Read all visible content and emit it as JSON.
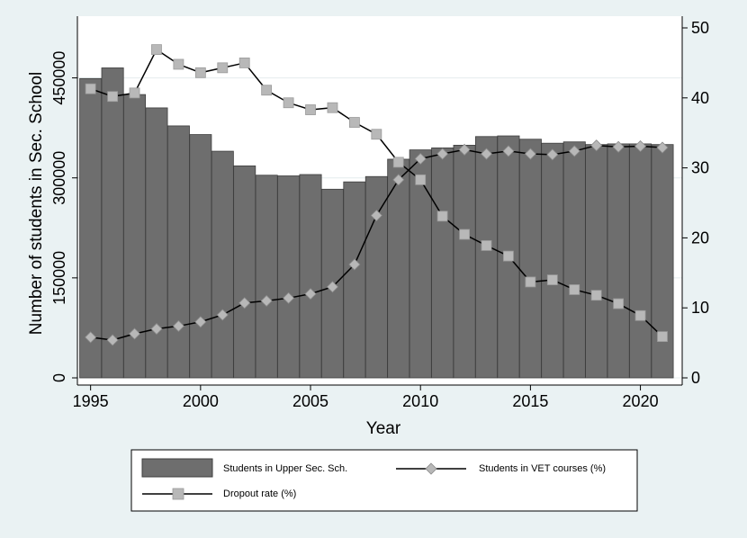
{
  "chart_data": {
    "type": "bar+line",
    "xlabel": "Year",
    "ylabel_left": "Number of students in Sec. School",
    "ylabel_right": "",
    "x": [
      1995,
      1996,
      1997,
      1998,
      1999,
      2000,
      2001,
      2002,
      2003,
      2004,
      2005,
      2006,
      2007,
      2008,
      2009,
      2010,
      2011,
      2012,
      2013,
      2014,
      2015,
      2016,
      2017,
      2018,
      2019,
      2020,
      2021
    ],
    "x_ticks": [
      "1995",
      "2000",
      "2005",
      "2010",
      "2015",
      "2020"
    ],
    "x_tick_values": [
      1995,
      2000,
      2005,
      2010,
      2015,
      2020
    ],
    "xlim": [
      1994.4,
      2021.9
    ],
    "ylim_left": [
      0,
      525000
    ],
    "y_ticks_left": [
      "0",
      "150000",
      "300000",
      "450000"
    ],
    "y_tick_values_left": [
      0,
      150000,
      300000,
      450000
    ],
    "ylim_right": [
      0,
      50
    ],
    "y_ticks_right": [
      "0",
      "10",
      "20",
      "30",
      "40",
      "50"
    ],
    "y_tick_values_right": [
      0,
      10,
      20,
      30,
      40,
      50
    ],
    "grid": "horizontal",
    "legend_position": "bottom",
    "colors": {
      "bar": "#6e6e6e",
      "bar_edge": "#3e3e3e",
      "marker": "#b8b8b8",
      "line": "#000000",
      "plot_bg": "#ffffff",
      "page_bg": "#eaf2f3"
    },
    "series": [
      {
        "name": "Students in Upper Sec. Sch.",
        "kind": "bar",
        "axis": "left",
        "values": [
          449000,
          465000,
          425000,
          405000,
          378000,
          365000,
          340000,
          318000,
          304000,
          303000,
          305000,
          283000,
          294000,
          302000,
          328000,
          342000,
          345000,
          349000,
          362000,
          363000,
          358000,
          352000,
          354000,
          350000,
          351000,
          351000,
          350000
        ]
      },
      {
        "name": "Students in VET courses (%)",
        "kind": "line",
        "marker": "diamond",
        "axis": "right",
        "values": [
          5.8,
          5.4,
          6.3,
          7.0,
          7.4,
          8.0,
          9.0,
          10.7,
          11.0,
          11.4,
          12.0,
          13.0,
          16.2,
          23.2,
          28.3,
          31.3,
          32.0,
          32.6,
          32.0,
          32.4,
          32.0,
          31.9,
          32.4,
          33.2,
          33.0,
          33.1,
          32.9
        ]
      },
      {
        "name": "Dropout rate (%)",
        "kind": "line",
        "marker": "square",
        "axis": "right",
        "values": [
          41.3,
          40.2,
          40.7,
          46.9,
          44.8,
          43.6,
          44.3,
          45.0,
          41.1,
          39.3,
          38.3,
          38.6,
          36.5,
          34.8,
          30.8,
          28.3,
          23.1,
          20.5,
          18.9,
          17.4,
          13.7,
          14.0,
          12.6,
          11.8,
          10.6,
          8.9,
          5.9
        ]
      }
    ]
  }
}
